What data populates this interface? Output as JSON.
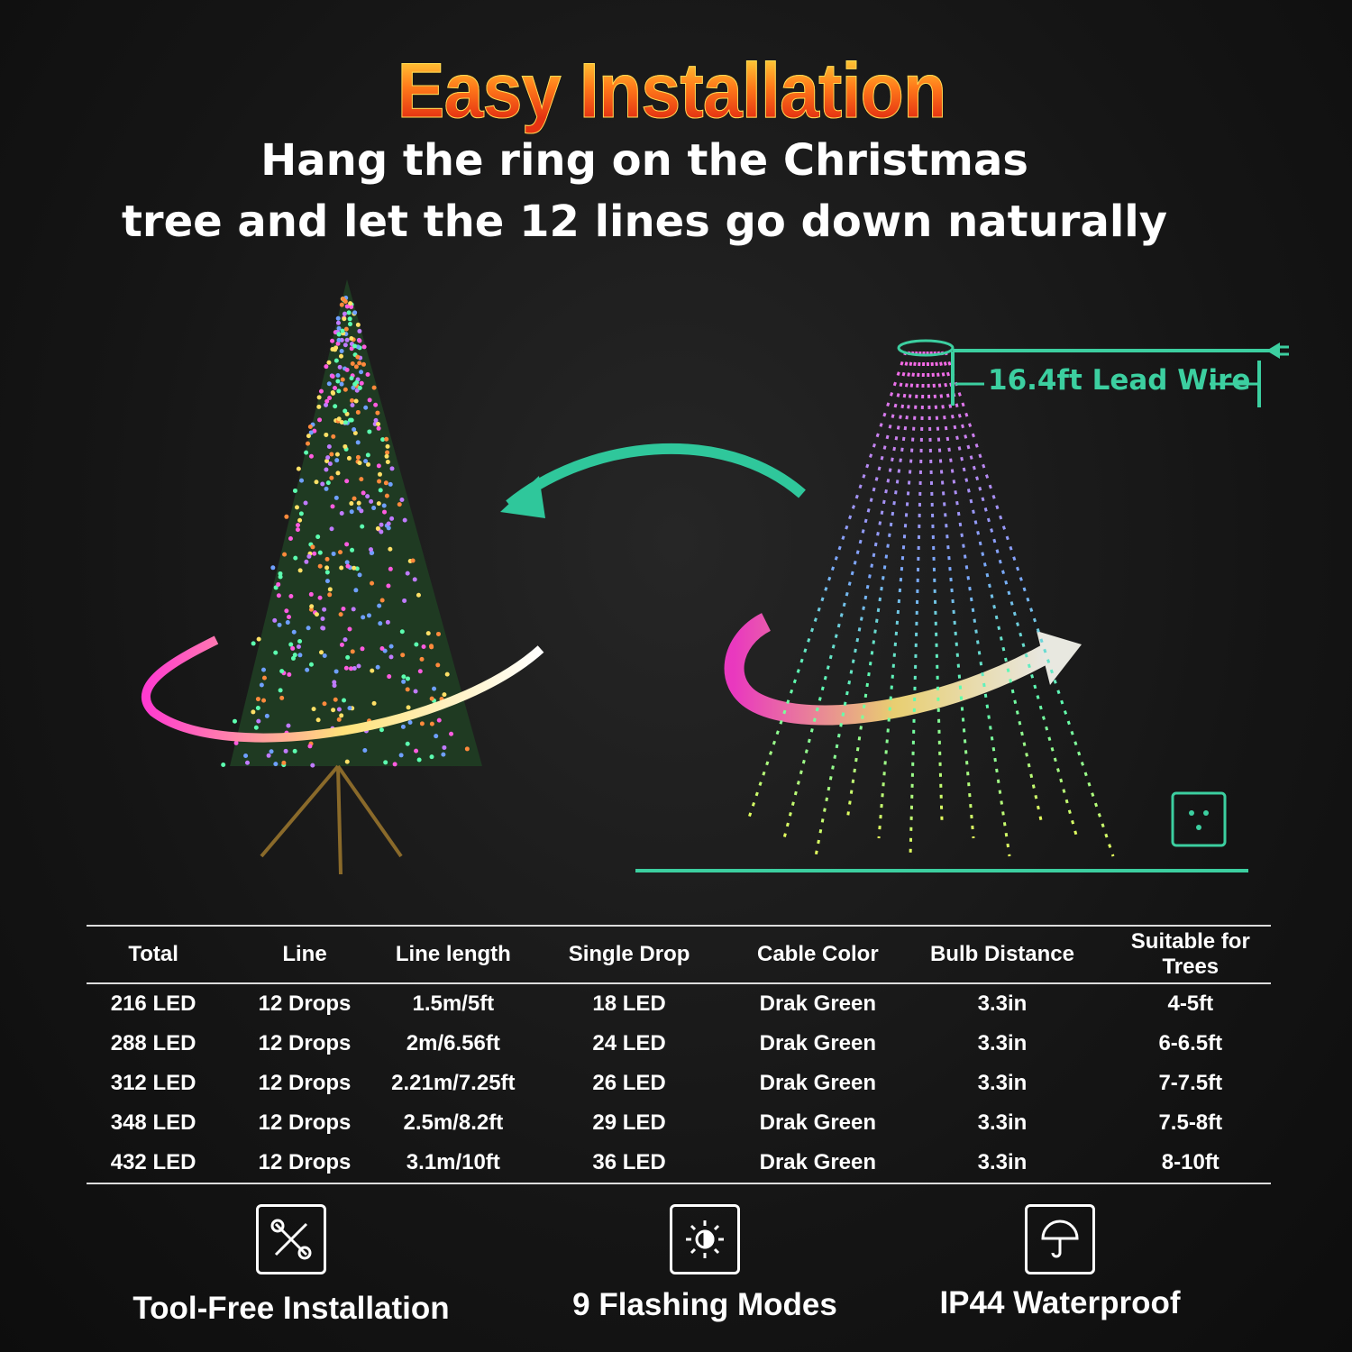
{
  "header": {
    "title": "Easy Installation",
    "subtitle_line1": "Hang the ring on the Christmas",
    "subtitle_line2": "tree and let the 12 lines go down naturally"
  },
  "diagram": {
    "lead_wire_label": "16.4ft Lead Wire",
    "accent_color": "#3ccfa0"
  },
  "spec_table": {
    "headers": [
      "Total",
      "Line",
      "Line length",
      "Single Drop",
      "Cable Color",
      "Bulb Distance",
      "Suitable for Trees"
    ],
    "rows": [
      [
        "216 LED",
        "12 Drops",
        "1.5m/5ft",
        "18 LED",
        "Drak Green",
        "3.3in",
        "4-5ft"
      ],
      [
        "288 LED",
        "12 Drops",
        "2m/6.56ft",
        "24 LED",
        "Drak Green",
        "3.3in",
        "6-6.5ft"
      ],
      [
        "312 LED",
        "12 Drops",
        "2.21m/7.25ft",
        "26 LED",
        "Drak Green",
        "3.3in",
        "7-7.5ft"
      ],
      [
        "348 LED",
        "12 Drops",
        "2.5m/8.2ft",
        "29 LED",
        "Drak Green",
        "3.3in",
        "7.5-8ft"
      ],
      [
        "432 LED",
        "12 Drops",
        "3.1m/10ft",
        "36 LED",
        "Drak Green",
        "3.3in",
        "8-10ft"
      ]
    ]
  },
  "features": [
    {
      "label": "Tool-Free Installation",
      "icon": "tools-icon"
    },
    {
      "label": "9 Flashing Modes",
      "icon": "brightness-icon"
    },
    {
      "label": "IP44 Waterproof",
      "icon": "umbrella-icon"
    }
  ]
}
